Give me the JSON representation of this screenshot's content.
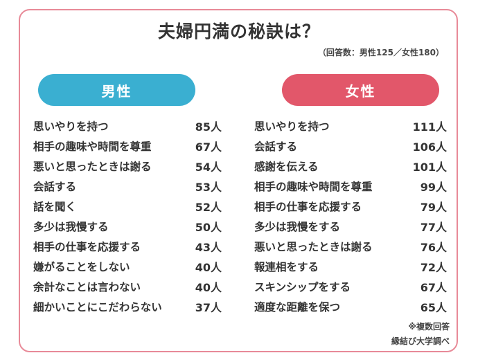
{
  "title": "夫婦円満の秘訣は？",
  "subtitle": "（回答数：男性125／女性180）",
  "colors": {
    "male": "#3aafd1",
    "female": "#e2576a",
    "frame": "#e88a98"
  },
  "chart_data": {
    "type": "table",
    "title": "夫婦円満の秘訣は？",
    "groups": [
      {
        "name": "男性",
        "rows": [
          {
            "label": "思いやりを持つ",
            "value": 85,
            "display": "85人"
          },
          {
            "label": "相手の趣味や時間を尊重",
            "value": 67,
            "display": "67人"
          },
          {
            "label": "悪いと思ったときは謝る",
            "value": 54,
            "display": "54人"
          },
          {
            "label": "会話する",
            "value": 53,
            "display": "53人"
          },
          {
            "label": "話を聞く",
            "value": 52,
            "display": "52人"
          },
          {
            "label": "多少は我慢する",
            "value": 50,
            "display": "50人"
          },
          {
            "label": "相手の仕事を応援する",
            "value": 43,
            "display": "43人"
          },
          {
            "label": "嫌がることをしない",
            "value": 40,
            "display": "40人"
          },
          {
            "label": "余計なことは言わない",
            "value": 40,
            "display": "40人"
          },
          {
            "label": "細かいことにこだわらない",
            "value": 37,
            "display": "37人"
          }
        ]
      },
      {
        "name": "女性",
        "rows": [
          {
            "label": "思いやりを持つ",
            "value": 111,
            "display": "111人"
          },
          {
            "label": "会話する",
            "value": 106,
            "display": "106人"
          },
          {
            "label": "感謝を伝える",
            "value": 101,
            "display": "101人"
          },
          {
            "label": "相手の趣味や時間を尊重",
            "value": 99,
            "display": "99人"
          },
          {
            "label": "相手の仕事を応援する",
            "value": 79,
            "display": "79人"
          },
          {
            "label": "多少は我慢をする",
            "value": 77,
            "display": "77人"
          },
          {
            "label": "悪いと思ったときは謝る",
            "value": 76,
            "display": "76人"
          },
          {
            "label": "報連相をする",
            "value": 72,
            "display": "72人"
          },
          {
            "label": "スキンシップをする",
            "value": 67,
            "display": "67人"
          },
          {
            "label": "適度な距離を保つ",
            "value": 65,
            "display": "65人"
          }
        ]
      }
    ]
  },
  "note": "※複数回答",
  "source": "縁結び大学調べ"
}
